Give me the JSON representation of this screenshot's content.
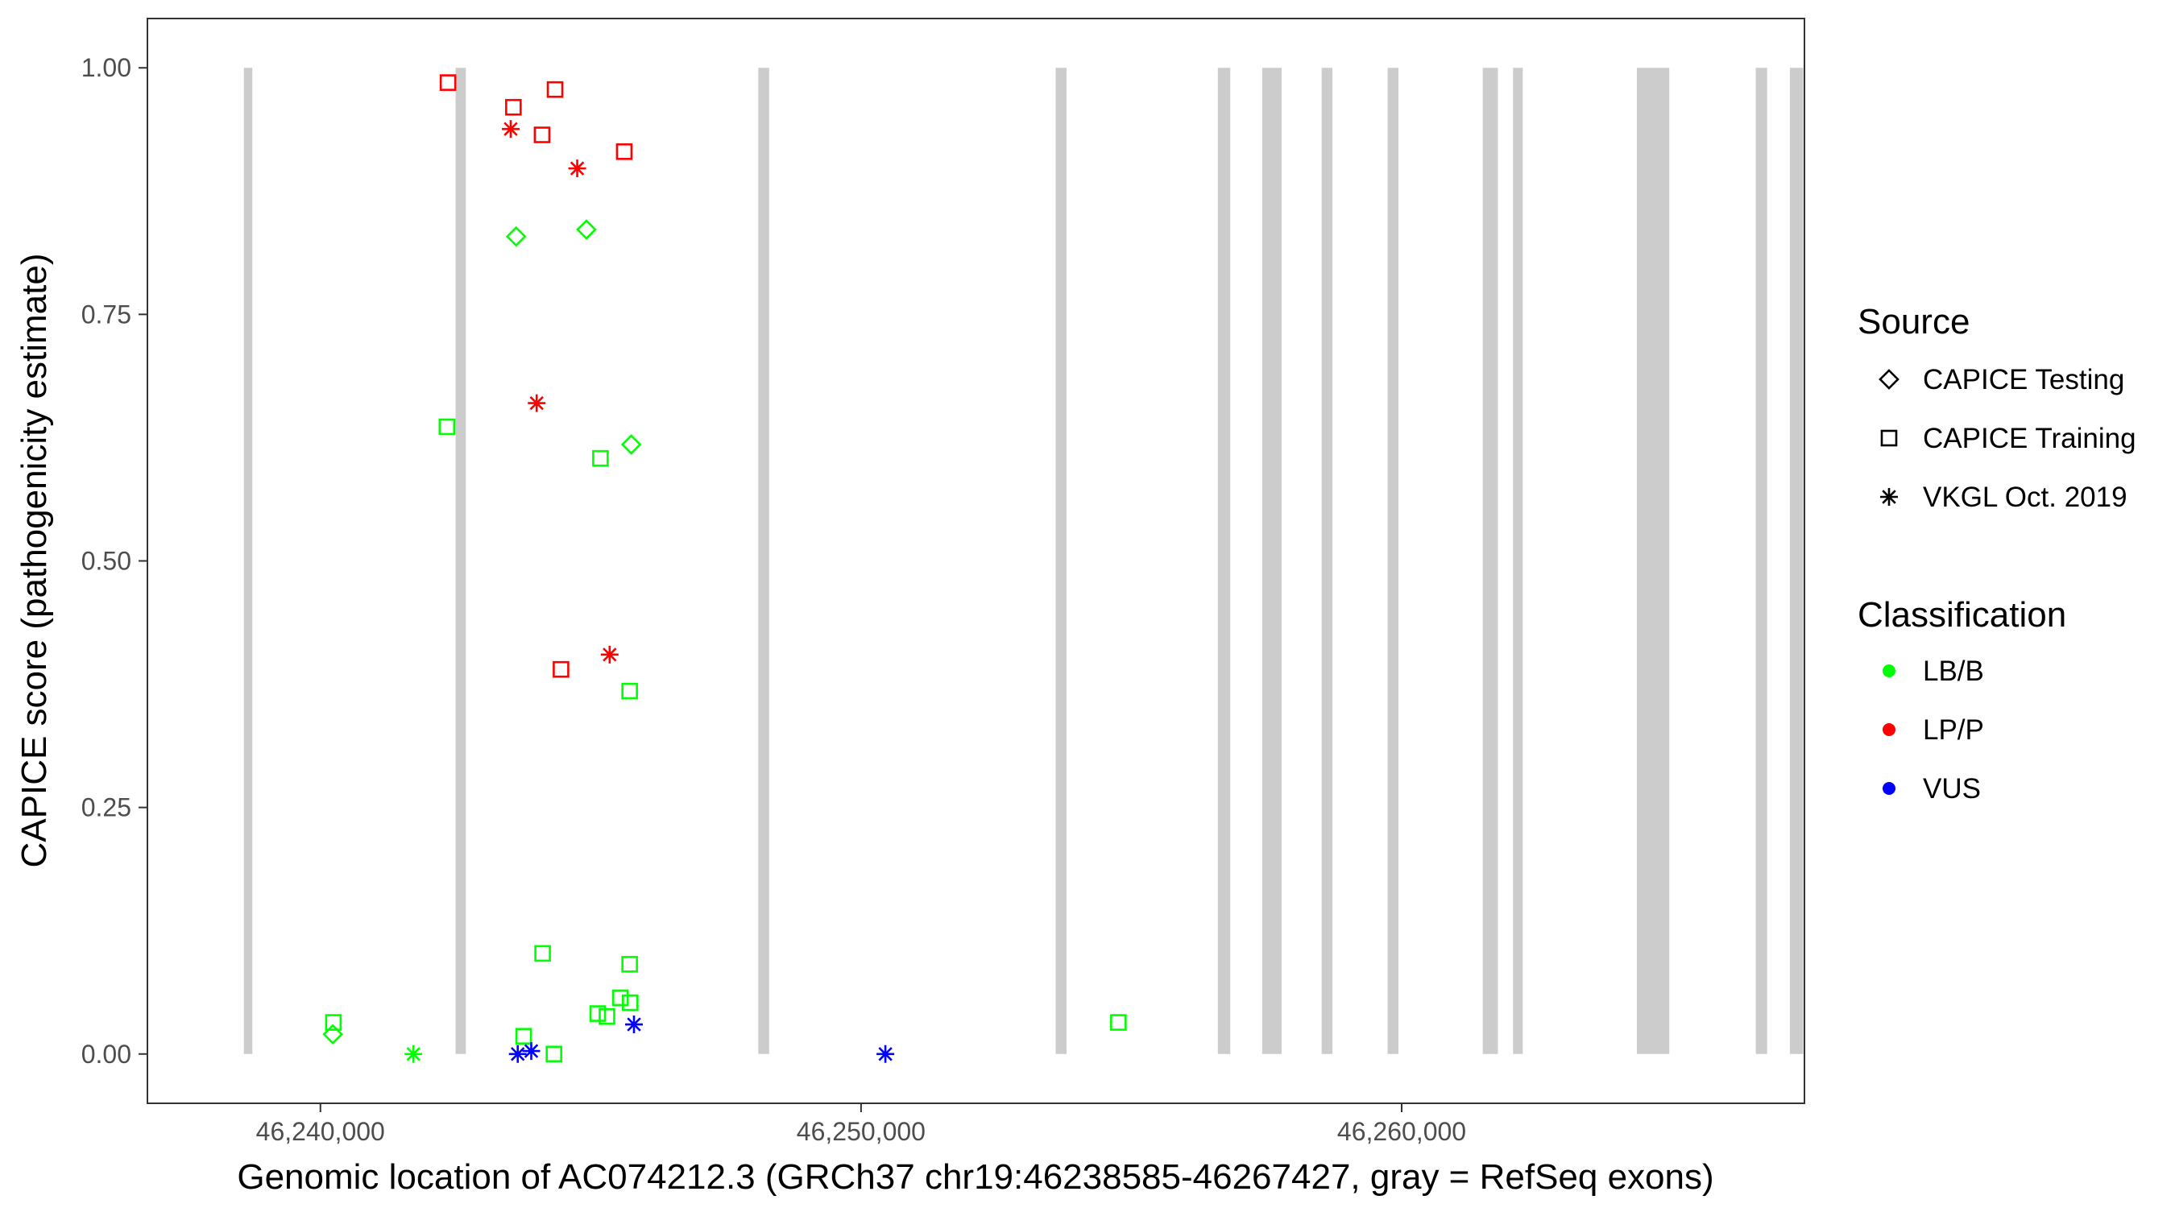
{
  "chart_data": {
    "type": "scatter",
    "xlabel": "Genomic location of AC074212.3 (GRCh37 chr19:46238585-46267427, gray = RefSeq exons)",
    "ylabel": "CAPICE score (pathogenicity estimate)",
    "xlim": [
      46236800,
      46267450
    ],
    "ylim": [
      -0.05,
      1.05
    ],
    "x_ticks": [
      46240000,
      46250000,
      46260000
    ],
    "x_tick_labels": [
      "46,240,000",
      "46,250,000",
      "46,260,000"
    ],
    "y_ticks": [
      0,
      0.25,
      0.5,
      0.75,
      1.0
    ],
    "y_tick_labels": [
      "0.00",
      "0.25",
      "0.50",
      "0.75",
      "1.00"
    ],
    "grid": false,
    "exons": [
      [
        46238585,
        46238740
      ],
      [
        46242500,
        46242690
      ],
      [
        46248100,
        46248300
      ],
      [
        46253600,
        46253800
      ],
      [
        46256600,
        46256830
      ],
      [
        46257420,
        46257780
      ],
      [
        46258520,
        46258720
      ],
      [
        46259740,
        46259940
      ],
      [
        46261500,
        46261780
      ],
      [
        46262060,
        46262240
      ],
      [
        46264350,
        46264950
      ],
      [
        46266550,
        46266760
      ],
      [
        46267180,
        46267427
      ]
    ],
    "colors": {
      "LB/B": "#00ff00",
      "LP/P": "#ff0000",
      "VUS": "#0000ff",
      "exon": "#cccccc"
    },
    "points": [
      {
        "x": 46242360,
        "y": 0.985,
        "source": "CAPICE Training",
        "classification": "LP/P"
      },
      {
        "x": 46243570,
        "y": 0.96,
        "source": "CAPICE Training",
        "classification": "LP/P"
      },
      {
        "x": 46244340,
        "y": 0.978,
        "source": "CAPICE Training",
        "classification": "LP/P"
      },
      {
        "x": 46244100,
        "y": 0.932,
        "source": "CAPICE Training",
        "classification": "LP/P"
      },
      {
        "x": 46245620,
        "y": 0.915,
        "source": "CAPICE Training",
        "classification": "LP/P"
      },
      {
        "x": 46244450,
        "y": 0.39,
        "source": "CAPICE Training",
        "classification": "LP/P"
      },
      {
        "x": 46243520,
        "y": 0.938,
        "source": "VKGL Oct. 2019",
        "classification": "LP/P"
      },
      {
        "x": 46244750,
        "y": 0.898,
        "source": "VKGL Oct. 2019",
        "classification": "LP/P"
      },
      {
        "x": 46244000,
        "y": 0.66,
        "source": "VKGL Oct. 2019",
        "classification": "LP/P"
      },
      {
        "x": 46245350,
        "y": 0.405,
        "source": "VKGL Oct. 2019",
        "classification": "LP/P"
      },
      {
        "x": 46243620,
        "y": 0.829,
        "source": "CAPICE Testing",
        "classification": "LB/B"
      },
      {
        "x": 46244920,
        "y": 0.836,
        "source": "CAPICE Testing",
        "classification": "LB/B"
      },
      {
        "x": 46245750,
        "y": 0.618,
        "source": "CAPICE Testing",
        "classification": "LB/B"
      },
      {
        "x": 46240230,
        "y": 0.02,
        "source": "CAPICE Testing",
        "classification": "LB/B"
      },
      {
        "x": 46242340,
        "y": 0.636,
        "source": "CAPICE Training",
        "classification": "LB/B"
      },
      {
        "x": 46245180,
        "y": 0.604,
        "source": "CAPICE Training",
        "classification": "LB/B"
      },
      {
        "x": 46245720,
        "y": 0.368,
        "source": "CAPICE Training",
        "classification": "LB/B"
      },
      {
        "x": 46244110,
        "y": 0.102,
        "source": "CAPICE Training",
        "classification": "LB/B"
      },
      {
        "x": 46245720,
        "y": 0.091,
        "source": "CAPICE Training",
        "classification": "LB/B"
      },
      {
        "x": 46245550,
        "y": 0.057,
        "source": "CAPICE Training",
        "classification": "LB/B"
      },
      {
        "x": 46245730,
        "y": 0.052,
        "source": "CAPICE Training",
        "classification": "LB/B"
      },
      {
        "x": 46245130,
        "y": 0.041,
        "source": "CAPICE Training",
        "classification": "LB/B"
      },
      {
        "x": 46245300,
        "y": 0.038,
        "source": "CAPICE Training",
        "classification": "LB/B"
      },
      {
        "x": 46240240,
        "y": 0.032,
        "source": "CAPICE Training",
        "classification": "LB/B"
      },
      {
        "x": 46243760,
        "y": 0.018,
        "source": "CAPICE Training",
        "classification": "LB/B"
      },
      {
        "x": 46244320,
        "y": 0.0,
        "source": "CAPICE Training",
        "classification": "LB/B"
      },
      {
        "x": 46254760,
        "y": 0.032,
        "source": "CAPICE Training",
        "classification": "LB/B"
      },
      {
        "x": 46241720,
        "y": 0.0,
        "source": "VKGL Oct. 2019",
        "classification": "LB/B"
      },
      {
        "x": 46243650,
        "y": 0.0,
        "source": "VKGL Oct. 2019",
        "classification": "VUS"
      },
      {
        "x": 46243900,
        "y": 0.003,
        "source": "VKGL Oct. 2019",
        "classification": "VUS"
      },
      {
        "x": 46245800,
        "y": 0.03,
        "source": "VKGL Oct. 2019",
        "classification": "VUS"
      },
      {
        "x": 46250450,
        "y": 0.0,
        "source": "VKGL Oct. 2019",
        "classification": "VUS"
      }
    ],
    "legend": {
      "placement": "right",
      "source_title": "Source",
      "source_items": [
        {
          "label": "CAPICE Testing",
          "shape": "diamond"
        },
        {
          "label": "CAPICE Training",
          "shape": "square"
        },
        {
          "label": "VKGL Oct. 2019",
          "shape": "asterisk"
        }
      ],
      "classification_title": "Classification",
      "classification_items": [
        {
          "label": "LB/B",
          "color": "#00ff00"
        },
        {
          "label": "LP/P",
          "color": "#ff0000"
        },
        {
          "label": "VUS",
          "color": "#0000ff"
        }
      ]
    }
  }
}
